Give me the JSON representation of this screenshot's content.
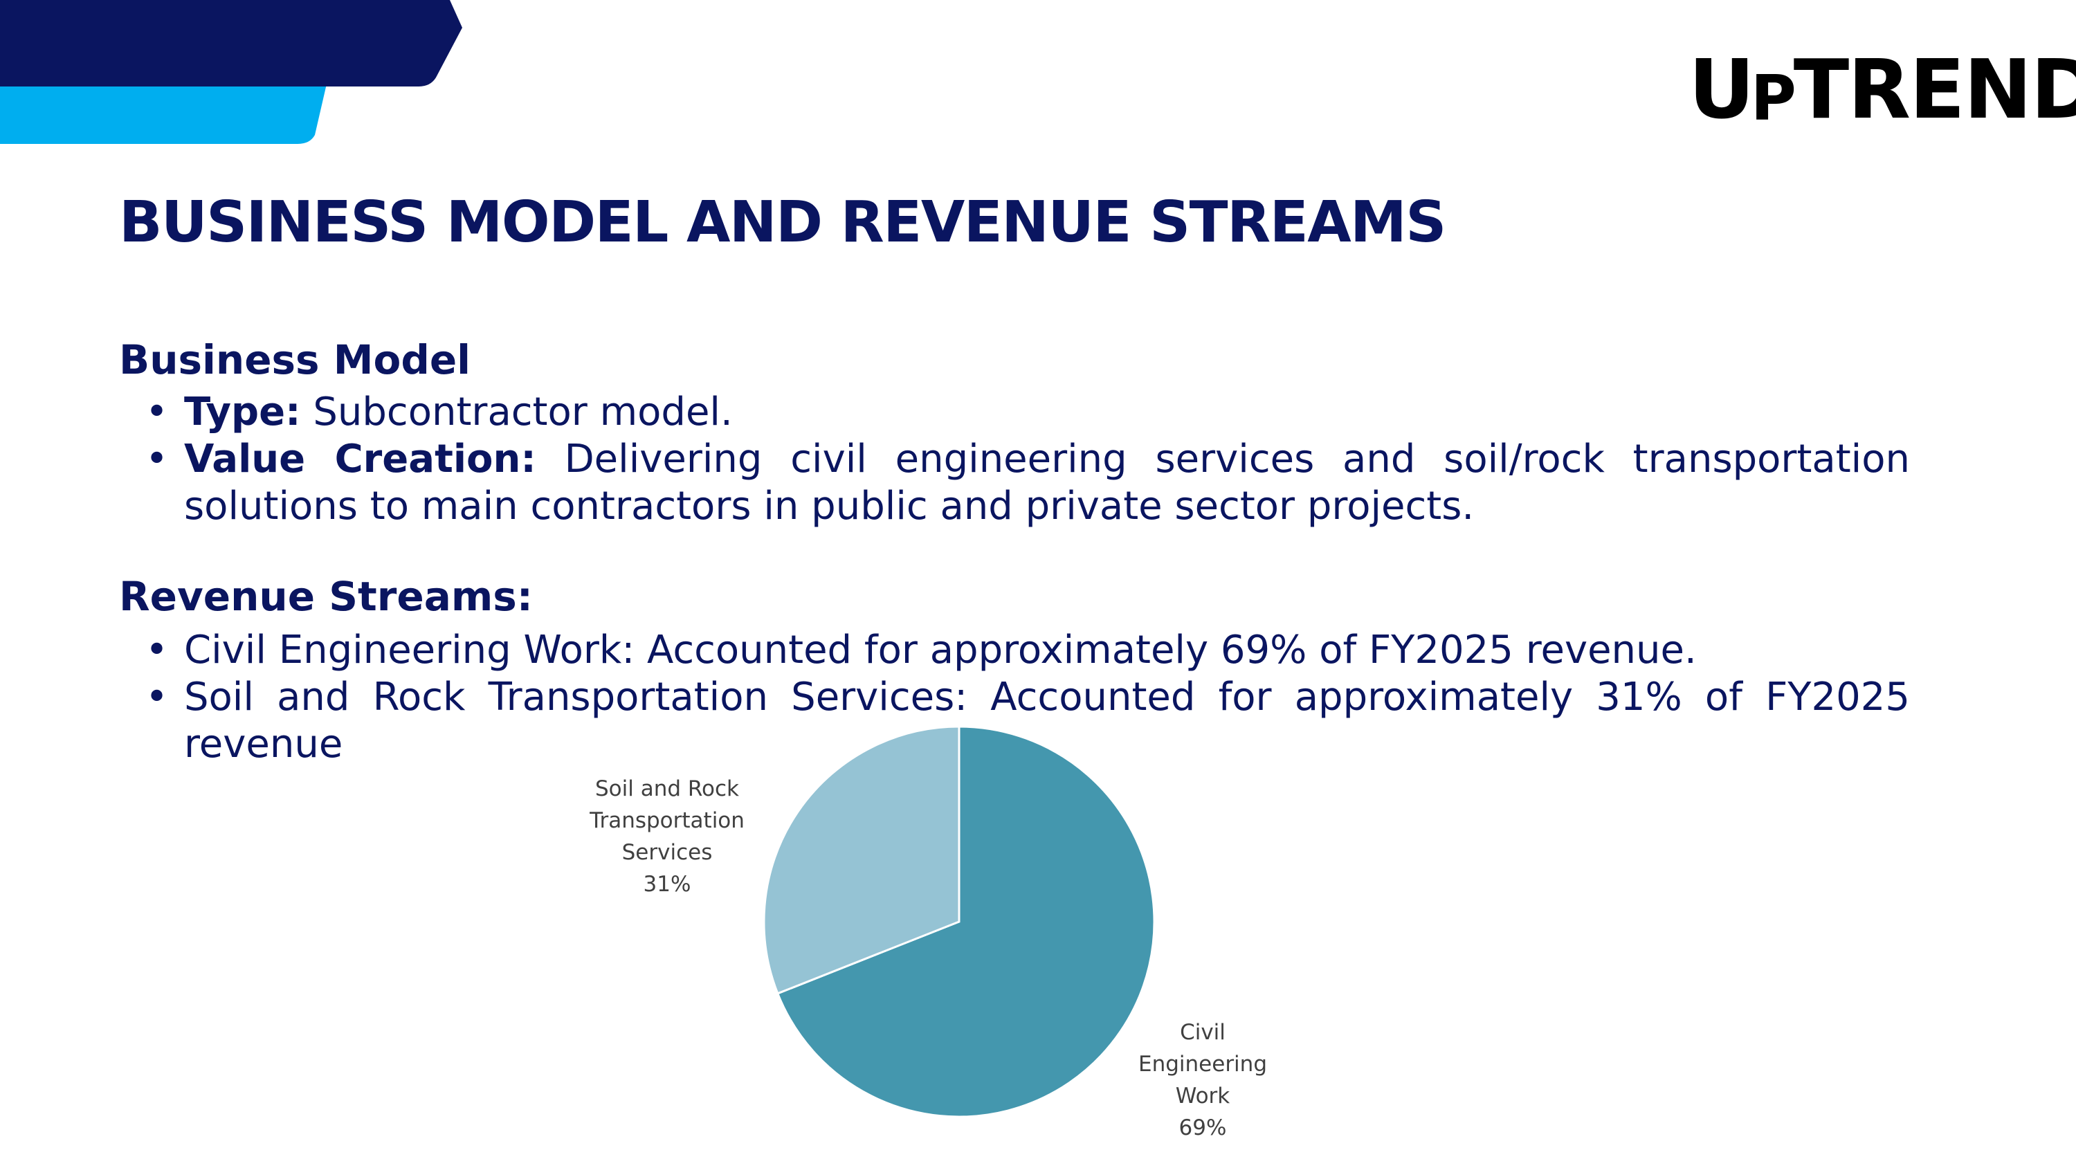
{
  "brand": {
    "logo_text": "UPTREND",
    "colors": {
      "navy": "#0a1560",
      "light_blue": "#00aeef",
      "slice_civil": "#4497ae",
      "slice_soil": "#95c3d4"
    }
  },
  "title": "BUSINESS MODEL AND REVENUE STREAMS",
  "business_model": {
    "heading": "Business Model",
    "items": [
      {
        "label": "Type:",
        "text": " Subcontractor model."
      },
      {
        "label": "Value Creation:",
        "text": " Delivering civil engineering services and soil/rock transportation solutions to main contractors in public and private sector projects."
      }
    ]
  },
  "revenue_streams": {
    "heading": "Revenue Streams:",
    "items": [
      {
        "text": "Civil Engineering Work: Accounted for approximately 69% of FY2025 revenue."
      },
      {
        "text": "Soil and Rock Transportation Services: Accounted for approximately 31% of FY2025 revenue"
      }
    ]
  },
  "chart_data": {
    "type": "pie",
    "title": "",
    "slices": [
      {
        "label": "Civil Engineering Work",
        "value": 69,
        "display": "69%",
        "color": "#4497ae",
        "label_lines": [
          "Civil",
          "Engineering",
          "Work",
          "69%"
        ]
      },
      {
        "label": "Soil and Rock Transportation Services",
        "value": 31,
        "display": "31%",
        "color": "#95c3d4",
        "label_lines": [
          "Soil and Rock",
          "Transportation",
          "Services",
          "31%"
        ]
      }
    ],
    "legend": "none"
  }
}
